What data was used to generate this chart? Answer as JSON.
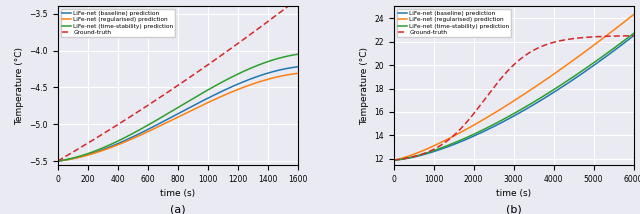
{
  "subplot_a": {
    "xlabel": "time (s)",
    "ylabel": "Temperature (°C)",
    "xlim": [
      0,
      1600
    ],
    "ylim": [
      -5.55,
      -3.4
    ],
    "yticks": [
      -5.5,
      -5.0,
      -4.5,
      -4.0,
      -3.5
    ],
    "xticks": [
      0,
      200,
      400,
      600,
      800,
      1000,
      1200,
      1400,
      1600
    ],
    "label_a": "(a)",
    "lines": {
      "baseline": {
        "color": "#1f77b4",
        "label": "LiFe-net (baseline) prediction"
      },
      "regularised": {
        "color": "#ff7f0e",
        "label": "LiFe-net (regularised) prediction"
      },
      "time_stability": {
        "color": "#2ca02c",
        "label": "LiFe-net (time-stability) prediction"
      },
      "ground_truth": {
        "color": "#d62728",
        "label": "Ground-truth"
      }
    }
  },
  "subplot_b": {
    "xlabel": "time (s)",
    "ylabel": "Temperature (°C)",
    "xlim": [
      0,
      6000
    ],
    "ylim": [
      11.5,
      25
    ],
    "yticks": [
      12,
      14,
      16,
      18,
      20,
      22,
      24
    ],
    "xticks": [
      0,
      1000,
      2000,
      3000,
      4000,
      5000,
      6000
    ],
    "label_b": "(b)",
    "lines": {
      "baseline": {
        "color": "#1f77b4",
        "label": "LiFe-net (baseline) prediction"
      },
      "regularised": {
        "color": "#ff7f0e",
        "label": "LiFe-net (regularised) prediction"
      },
      "time_stability": {
        "color": "#2ca02c",
        "label": "LiFe-net (time-stability) prediction"
      },
      "ground_truth": {
        "color": "#d62728",
        "label": "Ground-truth"
      }
    }
  },
  "background_color": "#eaeaf2"
}
